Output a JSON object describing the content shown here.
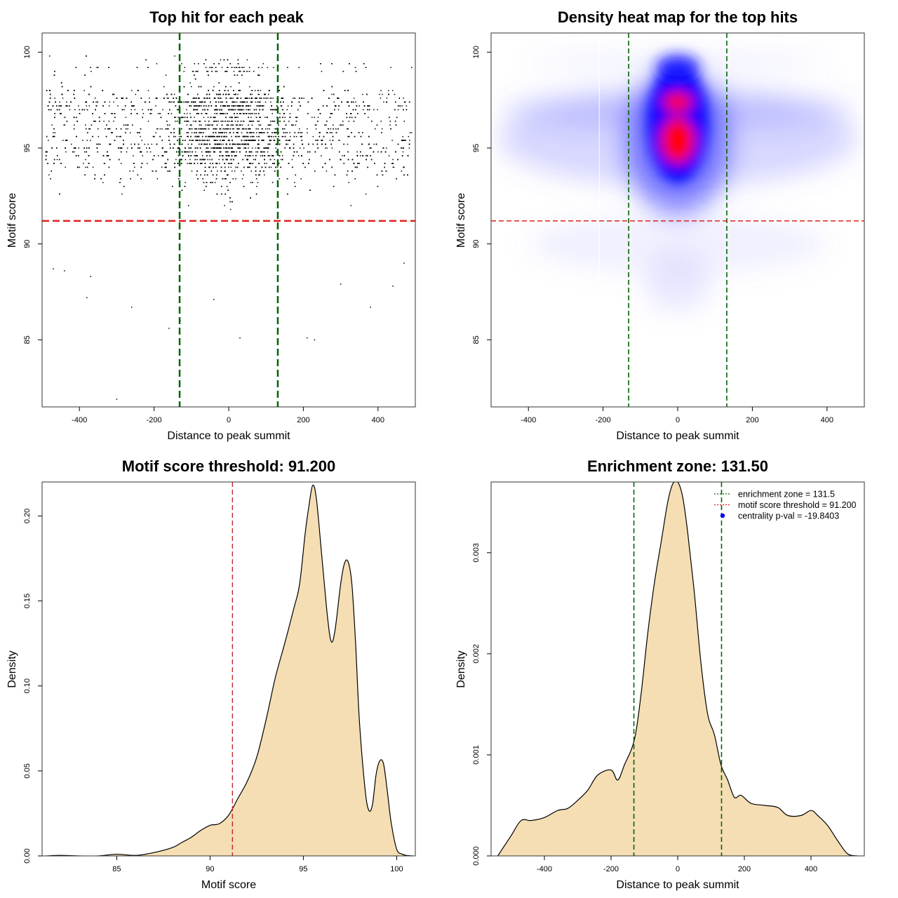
{
  "chart_data": [
    {
      "type": "scatter",
      "title": "Top hit for each peak",
      "xlabel": "Distance to peak summit",
      "ylabel": "Motif score",
      "xlim": [
        -500,
        500
      ],
      "ylim": [
        81.5,
        101
      ],
      "xticks": [
        -400,
        -200,
        0,
        200,
        400
      ],
      "yticks": [
        85,
        90,
        95,
        100
      ],
      "enrichment_zone": 131.5,
      "motif_score_threshold": 91.2,
      "colors": {
        "points": "#000000",
        "zone": "#006400",
        "threshold": "#e0201b"
      },
      "sample_points": [
        [
          -480,
          99.8
        ],
        [
          -470,
          88.7
        ],
        [
          -440,
          88.6
        ],
        [
          -380,
          87.2
        ],
        [
          -370,
          88.3
        ],
        [
          -300,
          81.9
        ],
        [
          -260,
          86.7
        ],
        [
          -160,
          85.6
        ],
        [
          -130,
          86.0
        ],
        [
          -40,
          87.1
        ],
        [
          30,
          85.1
        ],
        [
          210,
          85.1
        ],
        [
          230,
          85.0
        ],
        [
          300,
          87.9
        ],
        [
          380,
          86.7
        ],
        [
          440,
          87.8
        ],
        [
          470,
          89.0
        ],
        [
          490,
          99.2
        ]
      ]
    },
    {
      "type": "heatmap",
      "title": "Density heat map for the top hits",
      "xlabel": "Distance to peak summit",
      "ylabel": "Motif score",
      "xlim": [
        -500,
        500
      ],
      "ylim": [
        81.5,
        101
      ],
      "xticks": [
        -400,
        -200,
        0,
        200,
        400
      ],
      "yticks": [
        85,
        90,
        95,
        100
      ],
      "enrichment_zone": 131.5,
      "motif_score_threshold": 91.2,
      "colors": {
        "low": "#ffffff",
        "mid": "#0000ff",
        "high": "#ff0000"
      },
      "hotspots": [
        {
          "x": 0,
          "y": 95.4,
          "level": "high"
        },
        {
          "x": 0,
          "y": 97.4,
          "level": "high"
        },
        {
          "x": 0,
          "y": 99.2,
          "level": "medium"
        }
      ]
    },
    {
      "type": "area",
      "title": "Motif score threshold: 91.200",
      "xlabel": "Motif score",
      "ylabel": "Density",
      "xlim": [
        81,
        101
      ],
      "ylim": [
        0,
        0.22
      ],
      "xticks": [
        85,
        90,
        95,
        100
      ],
      "yticks": [
        0.0,
        0.05,
        0.1,
        0.15,
        0.2
      ],
      "ytick_labels": [
        "0.00",
        "0.05",
        "0.10",
        "0.15",
        "0.20"
      ],
      "threshold": 91.2,
      "fill": "#f5deb3",
      "threshold_color": "#c0282d",
      "x": [
        81.2,
        82,
        83,
        84,
        85,
        86,
        87,
        88,
        88.5,
        89,
        89.5,
        90,
        90.5,
        91,
        91.5,
        92,
        92.5,
        93,
        93.5,
        94,
        94.5,
        94.8,
        95.1,
        95.3,
        95.5,
        95.7,
        96,
        96.3,
        96.5,
        96.7,
        97,
        97.2,
        97.4,
        97.6,
        97.8,
        98,
        98.3,
        98.5,
        98.7,
        98.9,
        99.1,
        99.3,
        99.5,
        99.7,
        100,
        100.3,
        100.6,
        100.9
      ],
      "y": [
        0.0,
        0.0003,
        0.0,
        0.0,
        0.001,
        0.0003,
        0.002,
        0.005,
        0.008,
        0.011,
        0.015,
        0.018,
        0.019,
        0.024,
        0.034,
        0.044,
        0.058,
        0.08,
        0.105,
        0.125,
        0.146,
        0.16,
        0.19,
        0.206,
        0.218,
        0.21,
        0.175,
        0.14,
        0.126,
        0.133,
        0.16,
        0.172,
        0.173,
        0.16,
        0.125,
        0.08,
        0.04,
        0.027,
        0.03,
        0.048,
        0.056,
        0.054,
        0.038,
        0.02,
        0.004,
        0.001,
        0.0002,
        0.0
      ]
    },
    {
      "type": "area",
      "title": "Enrichment zone: 131.50",
      "xlabel": "Distance to peak summit",
      "ylabel": "Density",
      "xlim": [
        -560,
        560
      ],
      "ylim": [
        0,
        0.0037
      ],
      "xticks": [
        -400,
        -200,
        0,
        200,
        400
      ],
      "yticks": [
        0.0,
        0.001,
        0.002,
        0.003
      ],
      "ytick_labels": [
        "0.000",
        "0.001",
        "0.002",
        "0.003"
      ],
      "enrichment_zone": 131.5,
      "fill": "#f5deb3",
      "zone_color": "#006400",
      "x": [
        -540,
        -500,
        -470,
        -440,
        -400,
        -360,
        -330,
        -300,
        -270,
        -240,
        -200,
        -180,
        -160,
        -130,
        -110,
        -90,
        -70,
        -50,
        -30,
        -15,
        0,
        15,
        30,
        50,
        70,
        90,
        110,
        130,
        150,
        170,
        190,
        220,
        260,
        300,
        330,
        370,
        400,
        420,
        450,
        480,
        510,
        540
      ],
      "y": [
        0.0,
        0.0002,
        0.00035,
        0.00035,
        0.00038,
        0.00045,
        0.00047,
        0.00055,
        0.00065,
        0.0008,
        0.00085,
        0.00075,
        0.0009,
        0.00115,
        0.0016,
        0.0022,
        0.0027,
        0.0031,
        0.0035,
        0.00368,
        0.0037,
        0.00355,
        0.0032,
        0.0026,
        0.0019,
        0.0014,
        0.0012,
        0.0009,
        0.00075,
        0.00058,
        0.0006,
        0.00052,
        0.0005,
        0.00048,
        0.0004,
        0.0004,
        0.00045,
        0.0004,
        0.0003,
        0.00015,
        2e-05,
        0.0
      ],
      "legend": [
        {
          "label": "enrichment zone = 131.5",
          "color": "#006400",
          "symbol": "line"
        },
        {
          "label": "motif score threshold = 91.200",
          "color": "#e0201b",
          "symbol": "line"
        },
        {
          "label": "centrality p-val = -19.8403",
          "color": "#0000ff",
          "symbol": "point"
        }
      ]
    }
  ]
}
